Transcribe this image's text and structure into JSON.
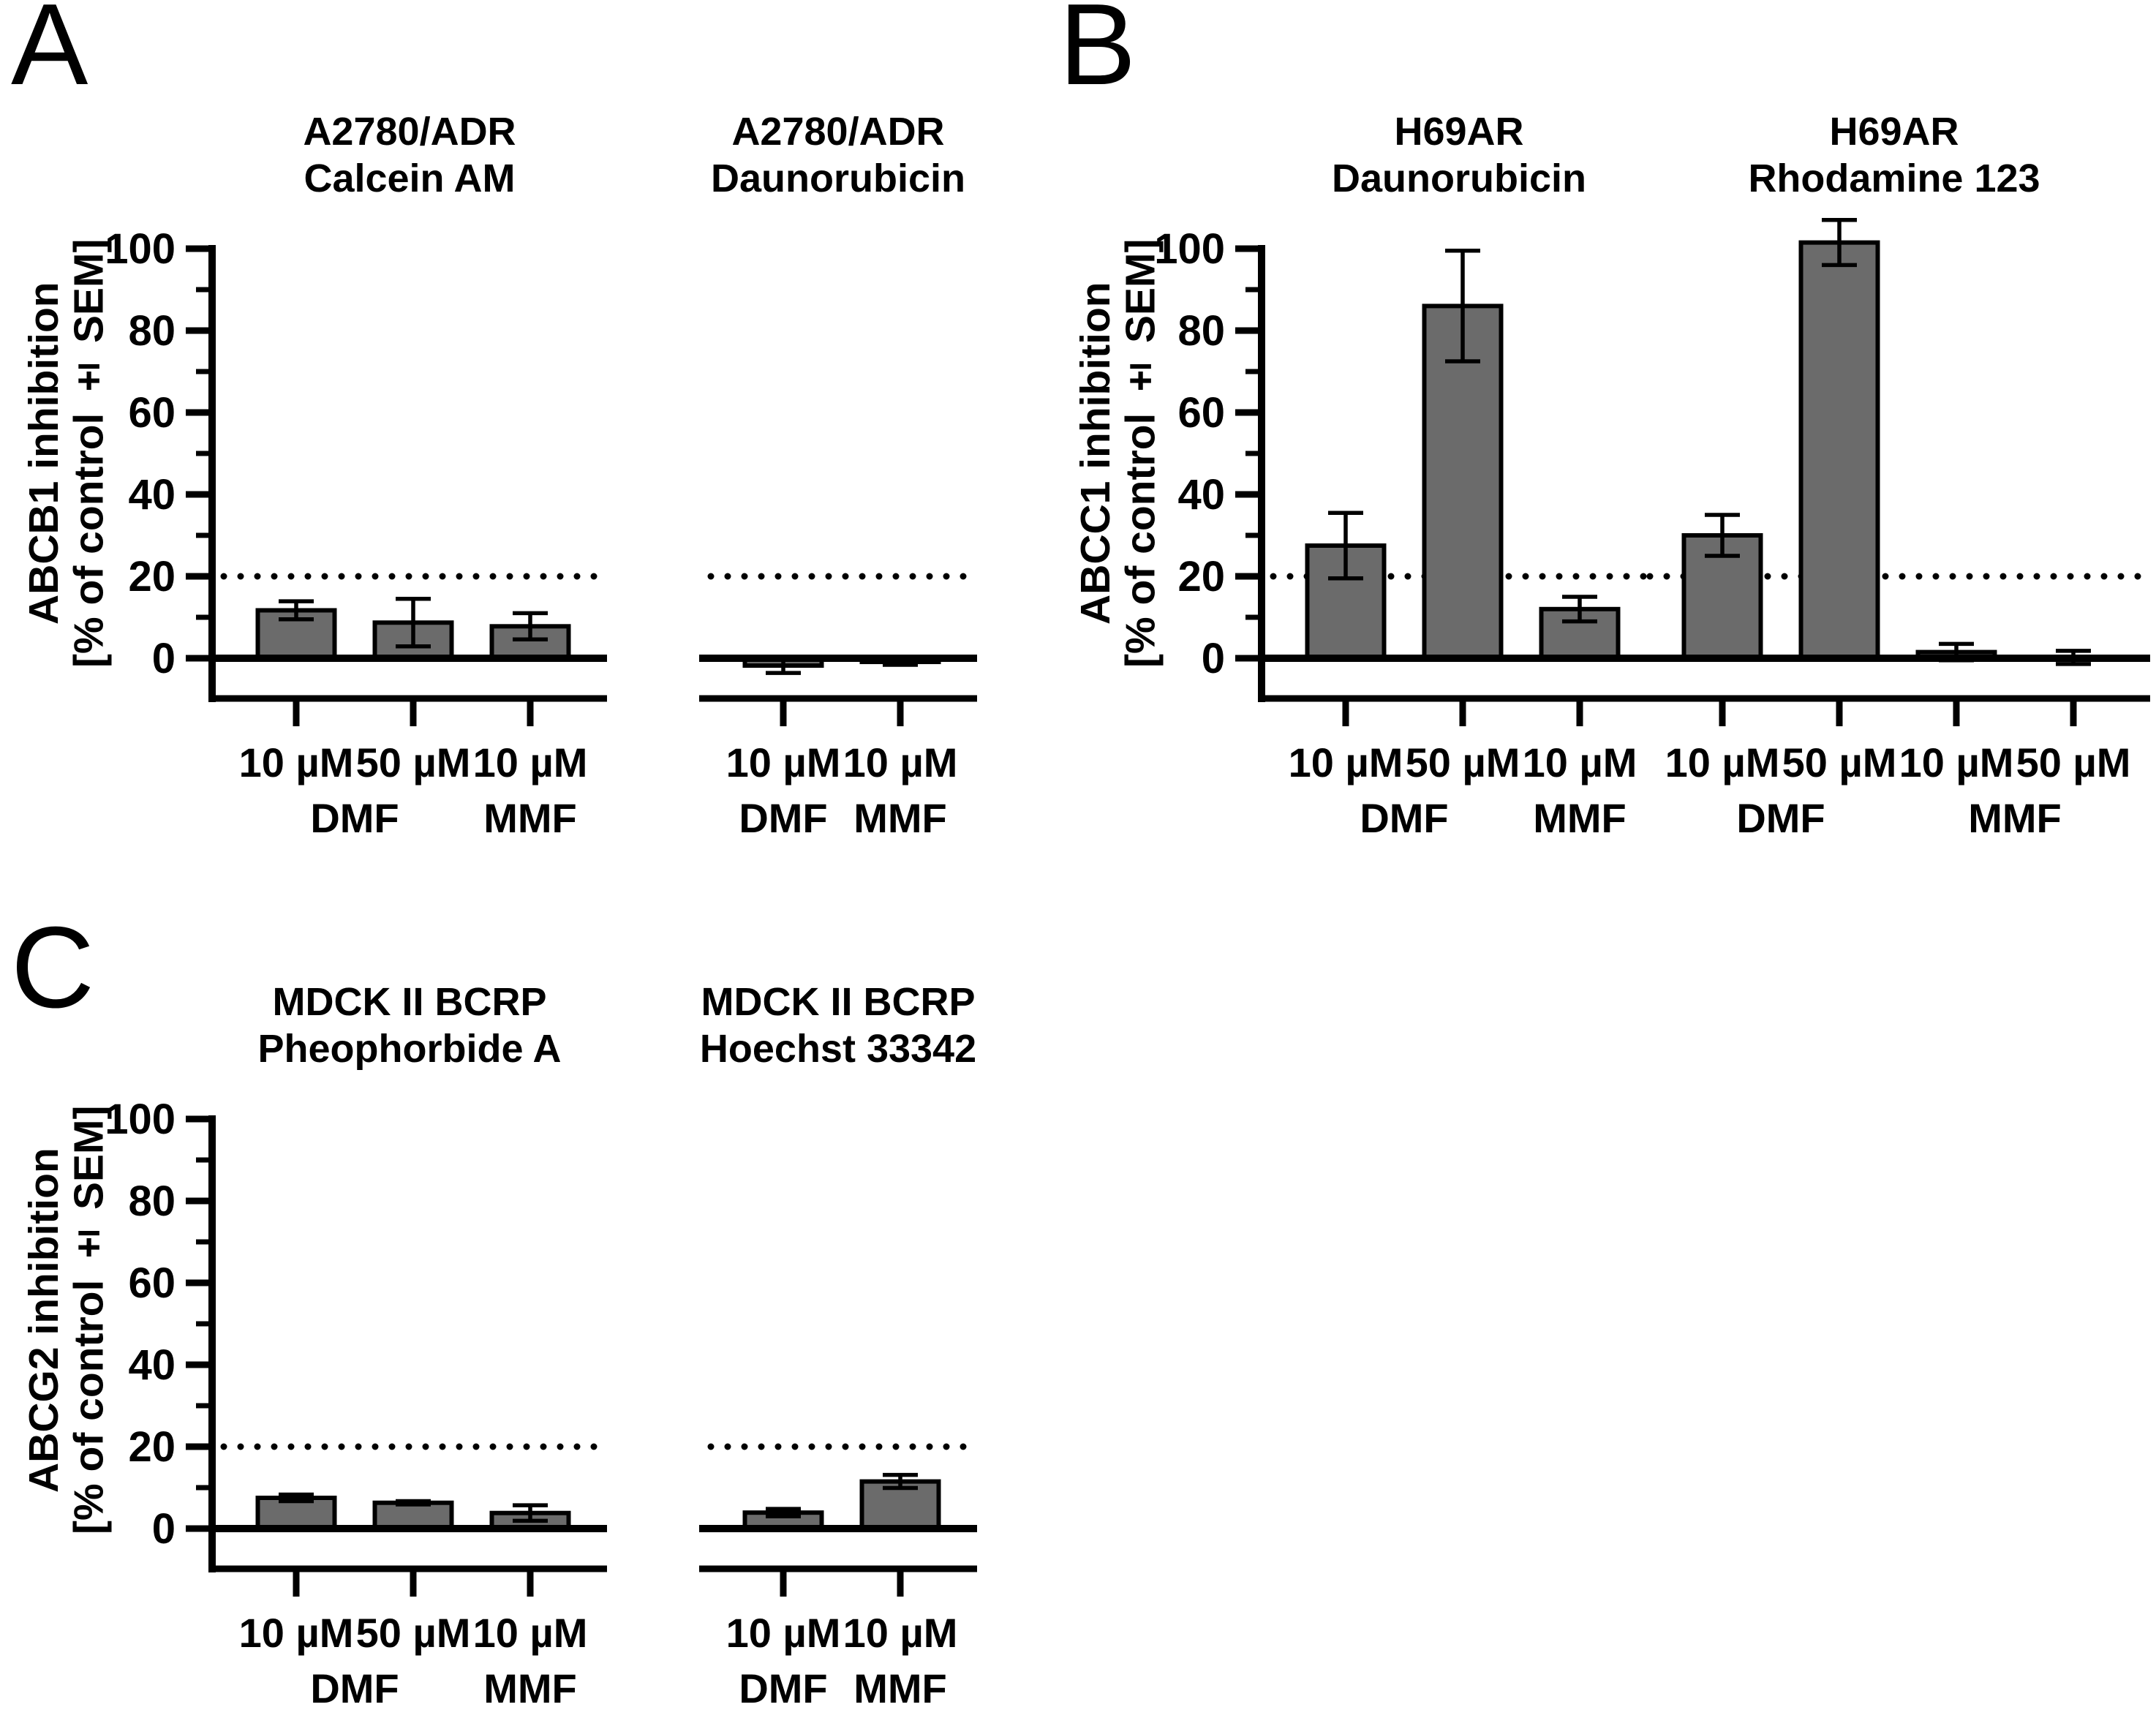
{
  "panels": [
    {
      "letter": "A",
      "ylabel_line1": "ABCB1 inhibition",
      "ylabel_line2": "[% of control ± SEM]"
    },
    {
      "letter": "B",
      "ylabel_line1": "ABCC1 inhibition",
      "ylabel_line2": "[% of control ± SEM]"
    },
    {
      "letter": "C",
      "ylabel_line1": "ABCG2 inhibition",
      "ylabel_line2": "[% of control ± SEM]"
    }
  ],
  "style": {
    "bar_fill": "#6b6b6b",
    "axis_color": "#000000",
    "background": "#ffffff"
  },
  "chart_data": [
    {
      "type": "bar",
      "panel": "A",
      "title_lines": [
        "A2780/ADR",
        "Calcein AM"
      ],
      "ylabel": "ABCB1 inhibition [% of control ± SEM]",
      "categories": [
        "10 µM",
        "50 µM",
        "10 µM"
      ],
      "group_labels": [
        {
          "label": "DMF",
          "bars": [
            0,
            1
          ]
        },
        {
          "label": "MMF",
          "bars": [
            2
          ]
        }
      ],
      "values": [
        11.7,
        8.7,
        7.8
      ],
      "sem": [
        2.2,
        5.8,
        3.2
      ],
      "ylim": [
        0,
        100
      ],
      "yticks": [
        0,
        20,
        40,
        60,
        80,
        100
      ],
      "yticks_minor": [
        10,
        30,
        50,
        70,
        90
      ],
      "threshold": 20,
      "grid": false,
      "legend": false,
      "show_y_axis": true
    },
    {
      "type": "bar",
      "panel": "A",
      "title_lines": [
        "A2780/ADR",
        "Daunorubicin"
      ],
      "ylabel": "ABCB1 inhibition [% of control ± SEM]",
      "categories": [
        "10 µM",
        "10 µM"
      ],
      "group_labels": [
        {
          "label": "DMF",
          "bars": [
            0
          ]
        },
        {
          "label": "MMF",
          "bars": [
            1
          ]
        }
      ],
      "values": [
        -1.8,
        -0.9
      ],
      "sem": [
        1.8,
        0.7
      ],
      "ylim": [
        0,
        100
      ],
      "yticks": [
        0,
        20,
        40,
        60,
        80,
        100
      ],
      "yticks_minor": [
        10,
        30,
        50,
        70,
        90
      ],
      "threshold": 20,
      "grid": false,
      "legend": false,
      "show_y_axis": false
    },
    {
      "type": "bar",
      "panel": "B",
      "title_lines": [
        "H69AR",
        "Daunorubicin"
      ],
      "ylabel": "ABCC1 inhibition [% of control ± SEM]",
      "categories": [
        "10 µM",
        "50 µM",
        "10 µM"
      ],
      "group_labels": [
        {
          "label": "DMF",
          "bars": [
            0,
            1
          ]
        },
        {
          "label": "MMF",
          "bars": [
            2
          ]
        }
      ],
      "values": [
        27.5,
        86,
        12
      ],
      "sem": [
        8,
        13.5,
        3
      ],
      "ylim": [
        0,
        100
      ],
      "yticks": [
        0,
        20,
        40,
        60,
        80,
        100
      ],
      "yticks_minor": [
        10,
        30,
        50,
        70,
        90
      ],
      "threshold": 20,
      "grid": false,
      "legend": false,
      "show_y_axis": true
    },
    {
      "type": "bar",
      "panel": "B",
      "title_lines": [
        "H69AR",
        "Rhodamine 123"
      ],
      "ylabel": "ABCC1 inhibition [% of control ± SEM]",
      "categories": [
        "10 µM",
        "50 µM",
        "10 µM",
        "50 µM"
      ],
      "group_labels": [
        {
          "label": "DMF",
          "bars": [
            0,
            1
          ]
        },
        {
          "label": "MMF",
          "bars": [
            2,
            3
          ]
        }
      ],
      "values": [
        30,
        101.5,
        1.5,
        0.2
      ],
      "sem": [
        5,
        5.5,
        2,
        1.6
      ],
      "ylim": [
        0,
        100
      ],
      "yticks": [
        0,
        20,
        40,
        60,
        80,
        100
      ],
      "yticks_minor": [
        10,
        30,
        50,
        70,
        90
      ],
      "threshold": 20,
      "grid": false,
      "legend": false,
      "show_y_axis": false
    },
    {
      "type": "bar",
      "panel": "C",
      "title_lines": [
        "MDCK II BCRP",
        "Pheophorbide A"
      ],
      "ylabel": "ABCG2 inhibition [% of control ± SEM]",
      "categories": [
        "10 µM",
        "50 µM",
        "10 µM"
      ],
      "group_labels": [
        {
          "label": "DMF",
          "bars": [
            0,
            1
          ]
        },
        {
          "label": "MMF",
          "bars": [
            2
          ]
        }
      ],
      "values": [
        7.5,
        6.3,
        3.8
      ],
      "sem": [
        0.8,
        0.4,
        1.9
      ],
      "ylim": [
        0,
        100
      ],
      "yticks": [
        0,
        20,
        40,
        60,
        80,
        100
      ],
      "yticks_minor": [
        10,
        30,
        50,
        70,
        90
      ],
      "threshold": 20,
      "grid": false,
      "legend": false,
      "show_y_axis": true
    },
    {
      "type": "bar",
      "panel": "C",
      "title_lines": [
        "MDCK II BCRP",
        "Hoechst 33342"
      ],
      "ylabel": "ABCG2 inhibition [% of control ± SEM]",
      "categories": [
        "10 µM",
        "10 µM"
      ],
      "group_labels": [
        {
          "label": "DMF",
          "bars": [
            0
          ]
        },
        {
          "label": "MMF",
          "bars": [
            1
          ]
        }
      ],
      "values": [
        3.9,
        11.5
      ],
      "sem": [
        0.9,
        1.6
      ],
      "ylim": [
        0,
        100
      ],
      "yticks": [
        0,
        20,
        40,
        60,
        80,
        100
      ],
      "yticks_minor": [
        10,
        30,
        50,
        70,
        90
      ],
      "threshold": 20,
      "grid": false,
      "legend": false,
      "show_y_axis": false
    }
  ]
}
